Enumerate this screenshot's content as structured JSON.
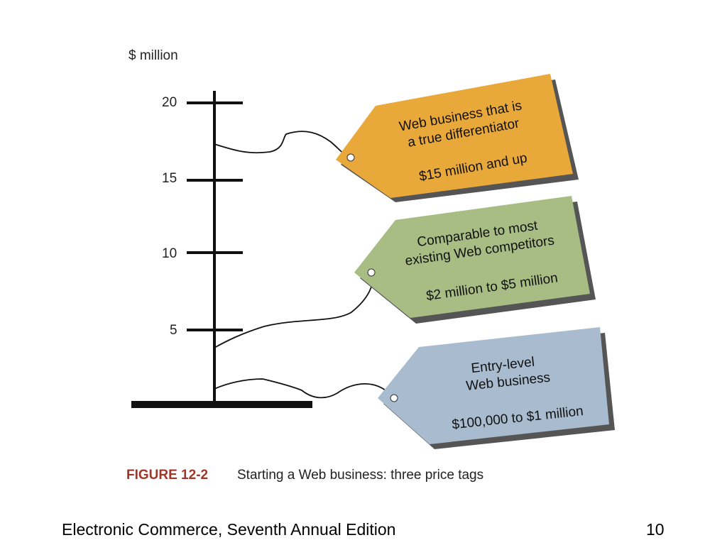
{
  "figure": {
    "axis_unit": "$ million",
    "ticks": [
      {
        "label": "20",
        "value": 20
      },
      {
        "label": "15",
        "value": 15
      },
      {
        "label": "10",
        "value": 10
      },
      {
        "label": "5",
        "value": 5
      }
    ],
    "tags": [
      {
        "line1": "Web business that is",
        "line2": "a true differentiator",
        "price": "$15 million and up",
        "color": "#e8a93a",
        "anchor_value": 17.3
      },
      {
        "line1": "Comparable to most",
        "line2": "existing Web competitors",
        "price": "$2 million to $5 million",
        "color": "#a8bd84",
        "anchor_value": 3.7
      },
      {
        "line1": "Entry-level",
        "line2": "Web business",
        "price": "$100,000 to $1 million",
        "color": "#a9bccf",
        "anchor_value": 1.0
      }
    ],
    "caption_label": "FIGURE 12-2",
    "caption_text": "Starting a Web business: three price tags",
    "colors": {
      "axis": "#111111",
      "caption_label": "#a0362a",
      "shadow": "#555555"
    }
  },
  "footer": {
    "title": "Electronic Commerce, Seventh Annual Edition",
    "page_number": "10"
  }
}
